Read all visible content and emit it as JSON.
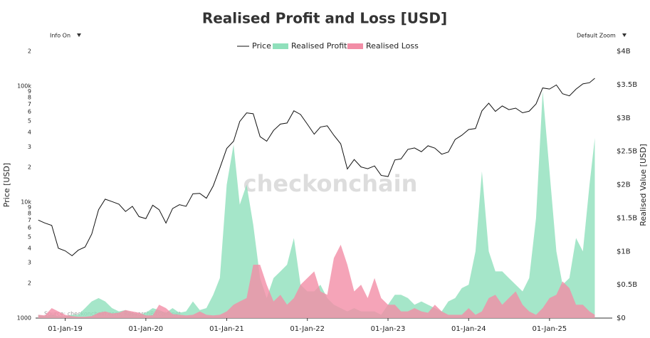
{
  "controls": {
    "info": "Info On",
    "zoom": "Default Zoom"
  },
  "chart_data": {
    "type": "line-area",
    "title": "Realised Profit and Loss [USD]",
    "ylabel": "Price [USD]",
    "y2label": "Realised Value [USD]",
    "source": "Source: checkonchain.com, ResearchBitcoin.net",
    "watermark": "checkonchain",
    "x": [
      "2018-09-01",
      "2018-10-01",
      "2018-11-01",
      "2018-12-01",
      "2019-01-01",
      "2019-02-01",
      "2019-03-01",
      "2019-04-01",
      "2019-05-01",
      "2019-06-01",
      "2019-07-01",
      "2019-08-01",
      "2019-09-01",
      "2019-10-01",
      "2019-11-01",
      "2019-12-01",
      "2020-01-01",
      "2020-02-01",
      "2020-03-01",
      "2020-04-01",
      "2020-05-01",
      "2020-06-01",
      "2020-07-01",
      "2020-08-01",
      "2020-09-01",
      "2020-10-01",
      "2020-11-01",
      "2020-12-01",
      "2021-01-01",
      "2021-02-01",
      "2021-03-01",
      "2021-04-01",
      "2021-05-01",
      "2021-06-01",
      "2021-07-01",
      "2021-08-01",
      "2021-09-01",
      "2021-10-01",
      "2021-11-01",
      "2021-12-01",
      "2022-01-01",
      "2022-02-01",
      "2022-03-01",
      "2022-04-01",
      "2022-05-01",
      "2022-06-01",
      "2022-07-01",
      "2022-08-01",
      "2022-09-01",
      "2022-10-01",
      "2022-11-01",
      "2022-12-01",
      "2023-01-01",
      "2023-02-01",
      "2023-03-01",
      "2023-04-01",
      "2023-05-01",
      "2023-06-01",
      "2023-07-01",
      "2023-08-01",
      "2023-09-01",
      "2023-10-01",
      "2023-11-01",
      "2023-12-01",
      "2024-01-01",
      "2024-02-01",
      "2024-03-01",
      "2024-04-01",
      "2024-05-01",
      "2024-06-01",
      "2024-07-01",
      "2024-08-01",
      "2024-09-01",
      "2024-10-01",
      "2024-11-01",
      "2024-12-01",
      "2025-01-01",
      "2025-02-01",
      "2025-03-01",
      "2025-04-01",
      "2025-05-01",
      "2025-06-01",
      "2025-07-01",
      "2025-07-25"
    ],
    "series": [
      {
        "name": "Realised Profit",
        "color": "#8fe0bb",
        "kind": "area",
        "axis": "y2",
        "values": [
          50000000.0,
          30000000.0,
          50000000.0,
          30000000.0,
          30000000.0,
          50000000.0,
          50000000.0,
          150000000.0,
          250000000.0,
          300000000.0,
          250000000.0,
          150000000.0,
          100000000.0,
          120000000.0,
          80000000.0,
          50000000.0,
          80000000.0,
          150000000.0,
          120000000.0,
          80000000.0,
          150000000.0,
          80000000.0,
          100000000.0,
          250000000.0,
          120000000.0,
          150000000.0,
          350000000.0,
          600000000.0,
          2000000000.0,
          2600000000.0,
          1700000000.0,
          2000000000.0,
          1400000000.0,
          600000000.0,
          300000000.0,
          600000000.0,
          700000000.0,
          800000000.0,
          1200000000.0,
          500000000.0,
          400000000.0,
          400000000.0,
          500000000.0,
          300000000.0,
          200000000.0,
          150000000.0,
          100000000.0,
          150000000.0,
          100000000.0,
          100000000.0,
          100000000.0,
          50000000.0,
          200000000.0,
          350000000.0,
          350000000.0,
          300000000.0,
          200000000.0,
          250000000.0,
          200000000.0,
          150000000.0,
          100000000.0,
          250000000.0,
          300000000.0,
          450000000.0,
          500000000.0,
          1000000000.0,
          2200000000.0,
          1000000000.0,
          700000000.0,
          700000000.0,
          600000000.0,
          500000000.0,
          400000000.0,
          600000000.0,
          1500000000.0,
          3400000000.0,
          2200000000.0,
          1000000000.0,
          500000000.0,
          600000000.0,
          1200000000.0,
          1000000000.0,
          2000000000.0,
          2700000000.0
        ]
      },
      {
        "name": "Realised Loss",
        "color": "#f28da6",
        "kind": "area",
        "axis": "y2",
        "values": [
          50000000.0,
          40000000.0,
          150000000.0,
          100000000.0,
          50000000.0,
          30000000.0,
          20000000.0,
          20000000.0,
          30000000.0,
          80000000.0,
          100000000.0,
          70000000.0,
          80000000.0,
          120000000.0,
          100000000.0,
          80000000.0,
          40000000.0,
          40000000.0,
          200000000.0,
          150000000.0,
          60000000.0,
          50000000.0,
          40000000.0,
          50000000.0,
          100000000.0,
          50000000.0,
          40000000.0,
          50000000.0,
          100000000.0,
          200000000.0,
          250000000.0,
          300000000.0,
          800000000.0,
          800000000.0,
          500000000.0,
          250000000.0,
          350000000.0,
          200000000.0,
          300000000.0,
          500000000.0,
          600000000.0,
          700000000.0,
          400000000.0,
          350000000.0,
          900000000.0,
          1100000000.0,
          800000000.0,
          400000000.0,
          500000000.0,
          300000000.0,
          600000000.0,
          300000000.0,
          200000000.0,
          200000000.0,
          100000000.0,
          100000000.0,
          150000000.0,
          100000000.0,
          80000000.0,
          200000000.0,
          100000000.0,
          50000000.0,
          50000000.0,
          50000000.0,
          150000000.0,
          50000000.0,
          100000000.0,
          300000000.0,
          350000000.0,
          200000000.0,
          300000000.0,
          400000000.0,
          200000000.0,
          100000000.0,
          50000000.0,
          150000000.0,
          300000000.0,
          350000000.0,
          550000000.0,
          450000000.0,
          200000000.0,
          200000000.0,
          100000000.0,
          50000000.0
        ]
      },
      {
        "name": "Price",
        "color": "#111111",
        "kind": "line",
        "axis": "y",
        "values": [
          7000,
          6600,
          6300,
          4000,
          3800,
          3450,
          3850,
          4100,
          5300,
          8600,
          10600,
          10100,
          9600,
          8300,
          9200,
          7500,
          7200,
          9400,
          8600,
          6600,
          8800,
          9500,
          9200,
          11800,
          11900,
          10800,
          13800,
          19700,
          29000,
          33500,
          49600,
          58800,
          57800,
          36700,
          33500,
          41500,
          47100,
          48100,
          61300,
          57000,
          47000,
          38500,
          44400,
          45500,
          37700,
          31800,
          19300,
          23300,
          20100,
          19400,
          20500,
          17000,
          16600,
          23100,
          23600,
          28500,
          29300,
          27200,
          30600,
          29200,
          25900,
          27000,
          34700,
          37700,
          42300,
          43100,
          61200,
          71300,
          60600,
          67500,
          62700,
          64600,
          58900,
          60800,
          70200,
          96500,
          94400,
          102400,
          86000,
          82500,
          94200,
          104600,
          107100,
          117000
        ]
      }
    ],
    "legend_order": [
      "Price",
      "Realised Profit",
      "Realised Loss"
    ],
    "xlim": [
      "2018-08-20",
      "2025-10-12"
    ],
    "xticks": [
      {
        "value": "2019-01-01",
        "label": "01-Jan-19"
      },
      {
        "value": "2020-01-01",
        "label": "01-Jan-20"
      },
      {
        "value": "2021-01-01",
        "label": "01-Jan-21"
      },
      {
        "value": "2022-01-01",
        "label": "01-Jan-22"
      },
      {
        "value": "2023-01-01",
        "label": "01-Jan-23"
      },
      {
        "value": "2024-01-01",
        "label": "01-Jan-24"
      },
      {
        "value": "2025-01-01",
        "label": "01-Jan-25"
      }
    ],
    "ylog": true,
    "ylim": [
      1000,
      200000
    ],
    "yticks": [
      1000,
      {
        "value": 2000,
        "label": "2"
      },
      {
        "value": 3000,
        "label": "3"
      },
      {
        "value": 4000,
        "label": "4"
      },
      {
        "value": 5000,
        "label": "5"
      },
      {
        "value": 6000,
        "label": "6"
      },
      {
        "value": 7000,
        "label": "7"
      },
      {
        "value": 8000,
        "label": "8"
      },
      {
        "value": 9000,
        "label": "9"
      },
      {
        "value": 10000,
        "label": "10k"
      },
      {
        "value": 20000,
        "label": "2"
      },
      {
        "value": 30000,
        "label": "3"
      },
      {
        "value": 40000,
        "label": "4"
      },
      {
        "value": 50000,
        "label": "5"
      },
      {
        "value": 60000,
        "label": "6"
      },
      {
        "value": 70000,
        "label": "7"
      },
      {
        "value": 80000,
        "label": "8"
      },
      {
        "value": 90000,
        "label": "9"
      },
      {
        "value": 100000,
        "label": "100k"
      },
      {
        "value": 200000,
        "label": "2"
      }
    ],
    "y2lim": [
      0,
      4000000000.0
    ],
    "y2ticks": [
      {
        "value": 0,
        "label": "$0"
      },
      {
        "value": 500000000.0,
        "label": "$0.5B"
      },
      {
        "value": 1000000000.0,
        "label": "$1B"
      },
      {
        "value": 1500000000.0,
        "label": "$1.5B"
      },
      {
        "value": 2000000000.0,
        "label": "$2B"
      },
      {
        "value": 2500000000.0,
        "label": "$2.5B"
      },
      {
        "value": 3000000000.0,
        "label": "$3B"
      },
      {
        "value": 3500000000.0,
        "label": "$3.5B"
      },
      {
        "value": 4000000000.0,
        "label": "$4B"
      }
    ],
    "grid": false
  }
}
